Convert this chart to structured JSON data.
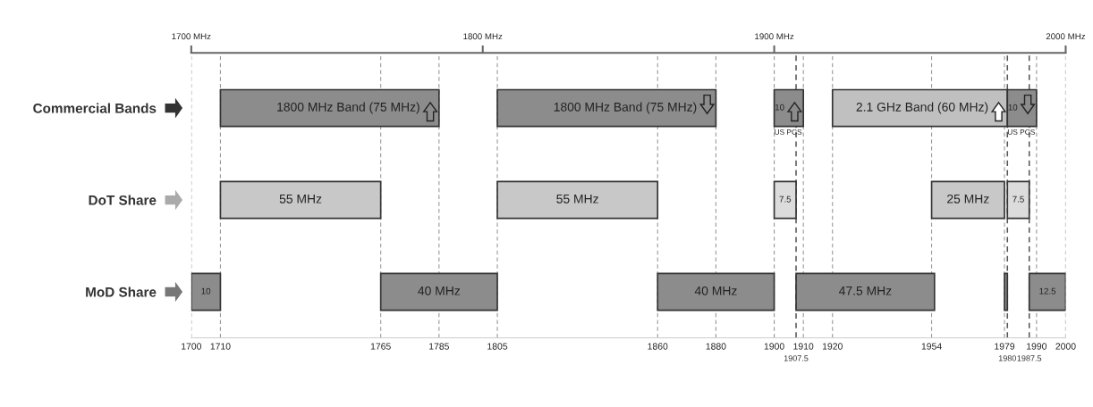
{
  "chart_data": {
    "type": "bar",
    "orientation": "horizontal",
    "categories": [
      "Commercial Bands",
      "DoT Share",
      "MoD Share"
    ],
    "series": [
      {
        "values": [
          75,
          55,
          10
        ],
        "base": [
          1710,
          1710,
          1700
        ],
        "colors": [
          "#8c8c8c",
          "#c8c8c8",
          "#8c8c8c"
        ],
        "value_labels": [
          "1800 MHz Band (75 MHz)",
          "55 MHz",
          "10"
        ]
      },
      {
        "values": [
          75,
          55,
          40
        ],
        "base": [
          1805,
          1805,
          1765
        ],
        "colors": [
          "#8c8c8c",
          "#c8c8c8",
          "#8c8c8c"
        ],
        "value_labels": [
          "1800 MHz Band (75 MHz)",
          "55 MHz",
          "40 MHz"
        ]
      },
      {
        "values": [
          10,
          7.5,
          40
        ],
        "base": [
          1900,
          1900,
          1860
        ],
        "colors": [
          "#8c8c8c",
          "#dcdcdc",
          "#8c8c8c"
        ],
        "value_labels": [
          "10",
          "7.5",
          "40 MHz"
        ]
      },
      {
        "values": [
          60,
          25,
          47.5
        ],
        "base": [
          1920,
          1954,
          1907.5
        ],
        "colors": [
          "#c0c0c0",
          "#c8c8c8",
          "#8c8c8c"
        ],
        "value_labels": [
          "2.1 GHz Band (60 MHz)",
          "25 MHz",
          "47.5 MHz"
        ]
      },
      {
        "values": [
          10,
          7.5,
          1
        ],
        "base": [
          1980,
          1980,
          1979
        ],
        "colors": [
          "#8c8c8c",
          "#dcdcdc",
          "#8c8c8c"
        ],
        "value_labels": [
          "10",
          "7.5",
          null
        ]
      },
      {
        "values": [
          null,
          null,
          12.5
        ],
        "base": [
          null,
          null,
          1987.5
        ],
        "colors": [
          null,
          null,
          "#8c8c8c"
        ],
        "value_labels": [
          null,
          null,
          "12.5"
        ]
      }
    ],
    "xlim": [
      1700,
      2000
    ],
    "xticks": [
      1700,
      1710,
      1765,
      1785,
      1805,
      1860,
      1880,
      1900,
      1910,
      1920,
      1954,
      1979,
      1990,
      2000
    ],
    "x2lim": [
      1700,
      2000
    ],
    "x2ticks": [
      {
        "value": 1700,
        "label": "1700 MHz"
      },
      {
        "value": 1800,
        "label": "1800 MHz"
      },
      {
        "value": 1900,
        "label": "1900 MHz"
      },
      {
        "value": 2000,
        "label": "2000 MHz"
      }
    ],
    "ref_lines": [
      {
        "axis": "x",
        "value": 1907.5,
        "label": "1907.5",
        "color": "#555555"
      },
      {
        "axis": "x",
        "value": 1980,
        "label": "1980",
        "color": "#555555"
      },
      {
        "axis": "x",
        "value": 1987.5,
        "label": "1987.5",
        "color": "#555555"
      }
    ],
    "grid": "x",
    "annotations": [
      {
        "text": "US PCS",
        "x": 1900,
        "y": "Commercial Bands"
      },
      {
        "text": "US PCS",
        "x": 1980,
        "y": "Commercial Bands"
      }
    ]
  }
}
